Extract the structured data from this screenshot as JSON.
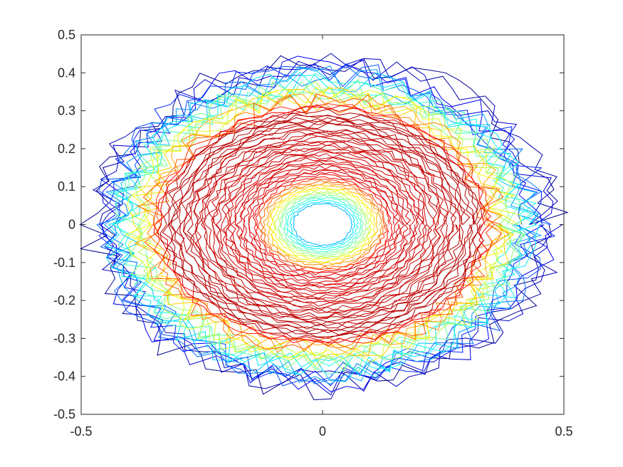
{
  "chart_data": {
    "type": "contour",
    "title": "",
    "xlabel": "",
    "ylabel": "",
    "xlim": [
      -0.5,
      0.5
    ],
    "ylim": [
      -0.5,
      0.5
    ],
    "x_ticks": [
      {
        "value": -0.5,
        "label": "-0.5"
      },
      {
        "value": 0,
        "label": "0"
      },
      {
        "value": 0.5,
        "label": "0.5"
      }
    ],
    "y_ticks": [
      {
        "value": 0.5,
        "label": "0.5"
      },
      {
        "value": 0.4,
        "label": "0.4"
      },
      {
        "value": 0.3,
        "label": "0.3"
      },
      {
        "value": 0.2,
        "label": "0.2"
      },
      {
        "value": 0.1,
        "label": "0.1"
      },
      {
        "value": 0,
        "label": "0"
      },
      {
        "value": -0.1,
        "label": "-0.1"
      },
      {
        "value": -0.2,
        "label": "-0.2"
      },
      {
        "value": -0.3,
        "label": "-0.3"
      },
      {
        "value": -0.4,
        "label": "-0.4"
      },
      {
        "value": -0.5,
        "label": "-0.5"
      }
    ],
    "colormap": [
      "#00008f",
      "#0000ff",
      "#0080ff",
      "#00ffff",
      "#80ff80",
      "#ffff00",
      "#ff8000",
      "#ff0000",
      "#800000"
    ],
    "structure": {
      "center": [
        0.0,
        0.0
      ],
      "ring_radius_x": 0.32,
      "ring_radius_y": 0.29,
      "inner_low_radius": 0.06,
      "outer_extent": 0.47
    },
    "grid": false,
    "legend": "none"
  }
}
